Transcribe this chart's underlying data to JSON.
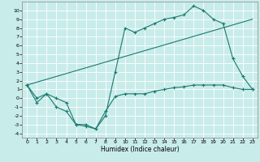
{
  "title": "",
  "xlabel": "Humidex (Indice chaleur)",
  "bg_color": "#c8ecea",
  "line_color": "#1a7a6e",
  "grid_color": "#ffffff",
  "xlim": [
    -0.5,
    23.5
  ],
  "ylim": [
    -4.5,
    11.0
  ],
  "xticks": [
    0,
    1,
    2,
    3,
    4,
    5,
    6,
    7,
    8,
    9,
    10,
    11,
    12,
    13,
    14,
    15,
    16,
    17,
    18,
    19,
    20,
    21,
    22,
    23
  ],
  "yticks": [
    -4,
    -3,
    -2,
    -1,
    0,
    1,
    2,
    3,
    4,
    5,
    6,
    7,
    8,
    9,
    10
  ],
  "curve1_x": [
    0,
    1,
    2,
    3,
    4,
    5,
    6,
    7,
    8,
    9,
    10,
    11,
    12,
    13,
    14,
    15,
    16,
    17,
    18,
    19,
    20,
    21,
    22,
    23
  ],
  "curve1_y": [
    1.5,
    0.0,
    0.5,
    -1.0,
    -1.5,
    -3.0,
    -3.0,
    -3.5,
    -2.0,
    3.0,
    8.0,
    7.5,
    8.0,
    8.5,
    9.0,
    9.2,
    9.5,
    10.5,
    10.0,
    9.0,
    8.5,
    4.5,
    2.5,
    1.0
  ],
  "curve2_x": [
    0,
    1,
    2,
    3,
    4,
    5,
    6,
    7,
    8,
    9,
    10,
    11,
    12,
    13,
    14,
    15,
    16,
    17,
    18,
    19,
    20,
    21,
    22,
    23
  ],
  "curve2_y": [
    1.5,
    -0.5,
    0.5,
    0.0,
    -0.5,
    -3.0,
    -3.2,
    -3.5,
    -1.5,
    0.2,
    0.5,
    0.5,
    0.5,
    0.8,
    1.0,
    1.2,
    1.3,
    1.5,
    1.5,
    1.5,
    1.5,
    1.2,
    1.0,
    1.0
  ],
  "line_x": [
    0,
    23
  ],
  "line_y": [
    1.5,
    9.0
  ]
}
